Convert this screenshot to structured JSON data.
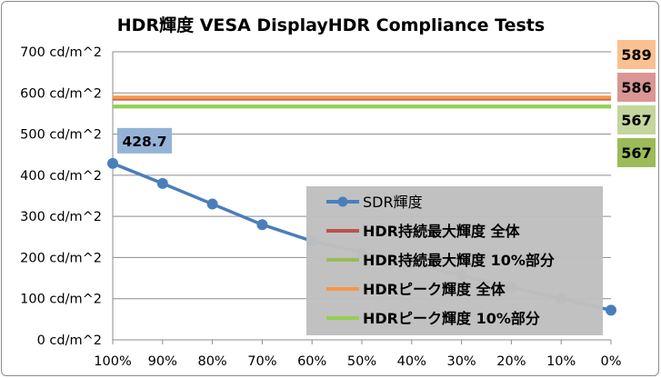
{
  "chart_data": {
    "type": "line",
    "title": "HDR輝度 VESA DisplayHDR Compliance Tests",
    "xlabel": "",
    "ylabel": "",
    "categories": [
      "100%",
      "90%",
      "80%",
      "70%",
      "60%",
      "50%",
      "40%",
      "30%",
      "20%",
      "10%",
      "0%"
    ],
    "ylim": [
      0,
      700
    ],
    "yticks": [
      "0 cd/m^2",
      "100 cd/m^2",
      "200 cd/m^2",
      "300 cd/m^2",
      "400 cd/m^2",
      "500 cd/m^2",
      "600 cd/m^2",
      "700 cd/m^2"
    ],
    "ytick_values": [
      0,
      100,
      200,
      300,
      400,
      500,
      600,
      700
    ],
    "grid": true,
    "series": [
      {
        "name": "SDR輝度",
        "kind": "line-marker",
        "color": "#4a7ebb",
        "values": [
          428.7,
          380,
          330,
          280,
          240,
          212,
          185,
          157,
          128,
          100,
          72
        ]
      },
      {
        "name": "HDR持続最大輝度 全体",
        "kind": "hline",
        "color": "#c0504d",
        "value": 586
      },
      {
        "name": "HDR持続最大輝度 10%部分",
        "kind": "hline",
        "color": "#9bbb59",
        "value": 567
      },
      {
        "name": "HDRピーク輝度 全体",
        "kind": "hline",
        "color": "#f79646",
        "value": 589
      },
      {
        "name": "HDRピーク輝度 10%部分",
        "kind": "hline",
        "color": "#92d050",
        "value": 567
      }
    ],
    "annotations": [
      {
        "text": "428.7",
        "series": "SDR輝度",
        "index": 0,
        "bg": "#95b3d7"
      }
    ],
    "side_labels": [
      {
        "text": "589",
        "bg": "#fac090"
      },
      {
        "text": "586",
        "bg": "#d99694"
      },
      {
        "text": "567",
        "bg": "#c3d69b"
      },
      {
        "text": "567",
        "bg": "#9bbb59"
      }
    ],
    "legend_position": "bottom-right inside plot",
    "legend_bg": "#bfbfbf"
  }
}
